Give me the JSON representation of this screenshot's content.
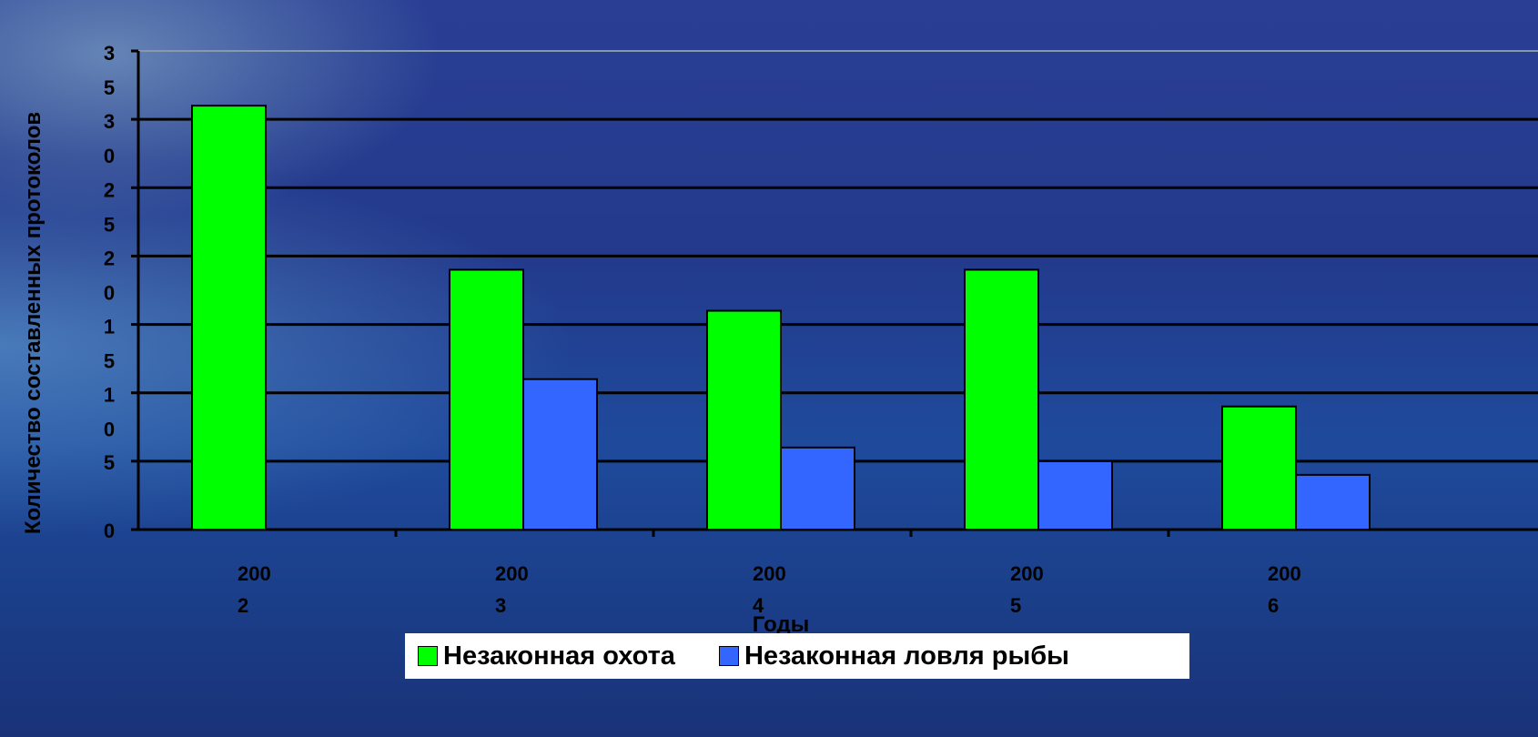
{
  "chart_data": {
    "type": "bar",
    "categories": [
      "2002",
      "2003",
      "2004",
      "2005",
      "2006"
    ],
    "category_labels": [
      [
        "200",
        "2"
      ],
      [
        "200",
        "3"
      ],
      [
        "200",
        "4"
      ],
      [
        "200",
        "5"
      ],
      [
        "200",
        "6"
      ]
    ],
    "series": [
      {
        "name": "Незаконная охота",
        "values": [
          31,
          19,
          16,
          19,
          9
        ],
        "color": "#00ff00"
      },
      {
        "name": "Незаконная ловля рыбы",
        "values": [
          0,
          11,
          6,
          5,
          4
        ],
        "color": "#3366ff"
      }
    ],
    "xlabel": "Годы",
    "ylabel": "Количество составленных протоколов",
    "ylim": [
      0,
      35
    ],
    "yticks": [
      0,
      5,
      10,
      15,
      20,
      25,
      30,
      35
    ],
    "ytick_labels": [
      [
        "0"
      ],
      [
        "5"
      ],
      [
        "1",
        "0"
      ],
      [
        "1",
        "5"
      ],
      [
        "2",
        "0"
      ],
      [
        "2",
        "5"
      ],
      [
        "3",
        "0"
      ],
      [
        "3",
        "5"
      ]
    ],
    "grid": true,
    "legend_position": "bottom"
  }
}
